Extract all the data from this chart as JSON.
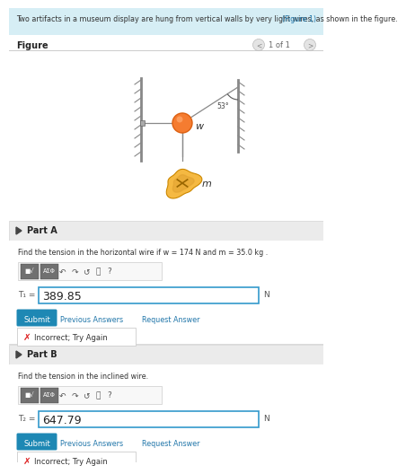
{
  "bg_color": "#ffffff",
  "header_bg": "#d6eef5",
  "header_text": "Two artifacts in a museum display are hung from vertical walls by very light wires, as shown in the figure.",
  "header_link": "(Figure 1)",
  "figure_label": "Figure",
  "figure_nav": "1 of 1",
  "part_a_header": "Part A",
  "part_a_question": "Find the tension in the horizontal wire if w = 174 N and m = 35.0 kg .",
  "part_a_answer": "389.85",
  "part_a_unit": "N",
  "part_a_label": "T₁ =",
  "part_b_header": "Part B",
  "part_b_question": "Find the tension in the inclined wire.",
  "part_b_answer": "647.79",
  "part_b_unit": "N",
  "part_b_label": "T₂ =",
  "submit_color": "#1e88b4",
  "submit_text_color": "#ffffff",
  "incorrect_text": "Incorrect; Try Again",
  "angle_label": "53°",
  "w_label": "w",
  "m_label": "m",
  "section_bg": "#ebebeb",
  "input_border": "#3399cc",
  "link_color": "#2277aa",
  "red_x_color": "#dd2222",
  "gray_border": "#cccccc",
  "toolbar_btn_color": "#707070",
  "wall_color": "#888888",
  "wire_color": "#888888"
}
